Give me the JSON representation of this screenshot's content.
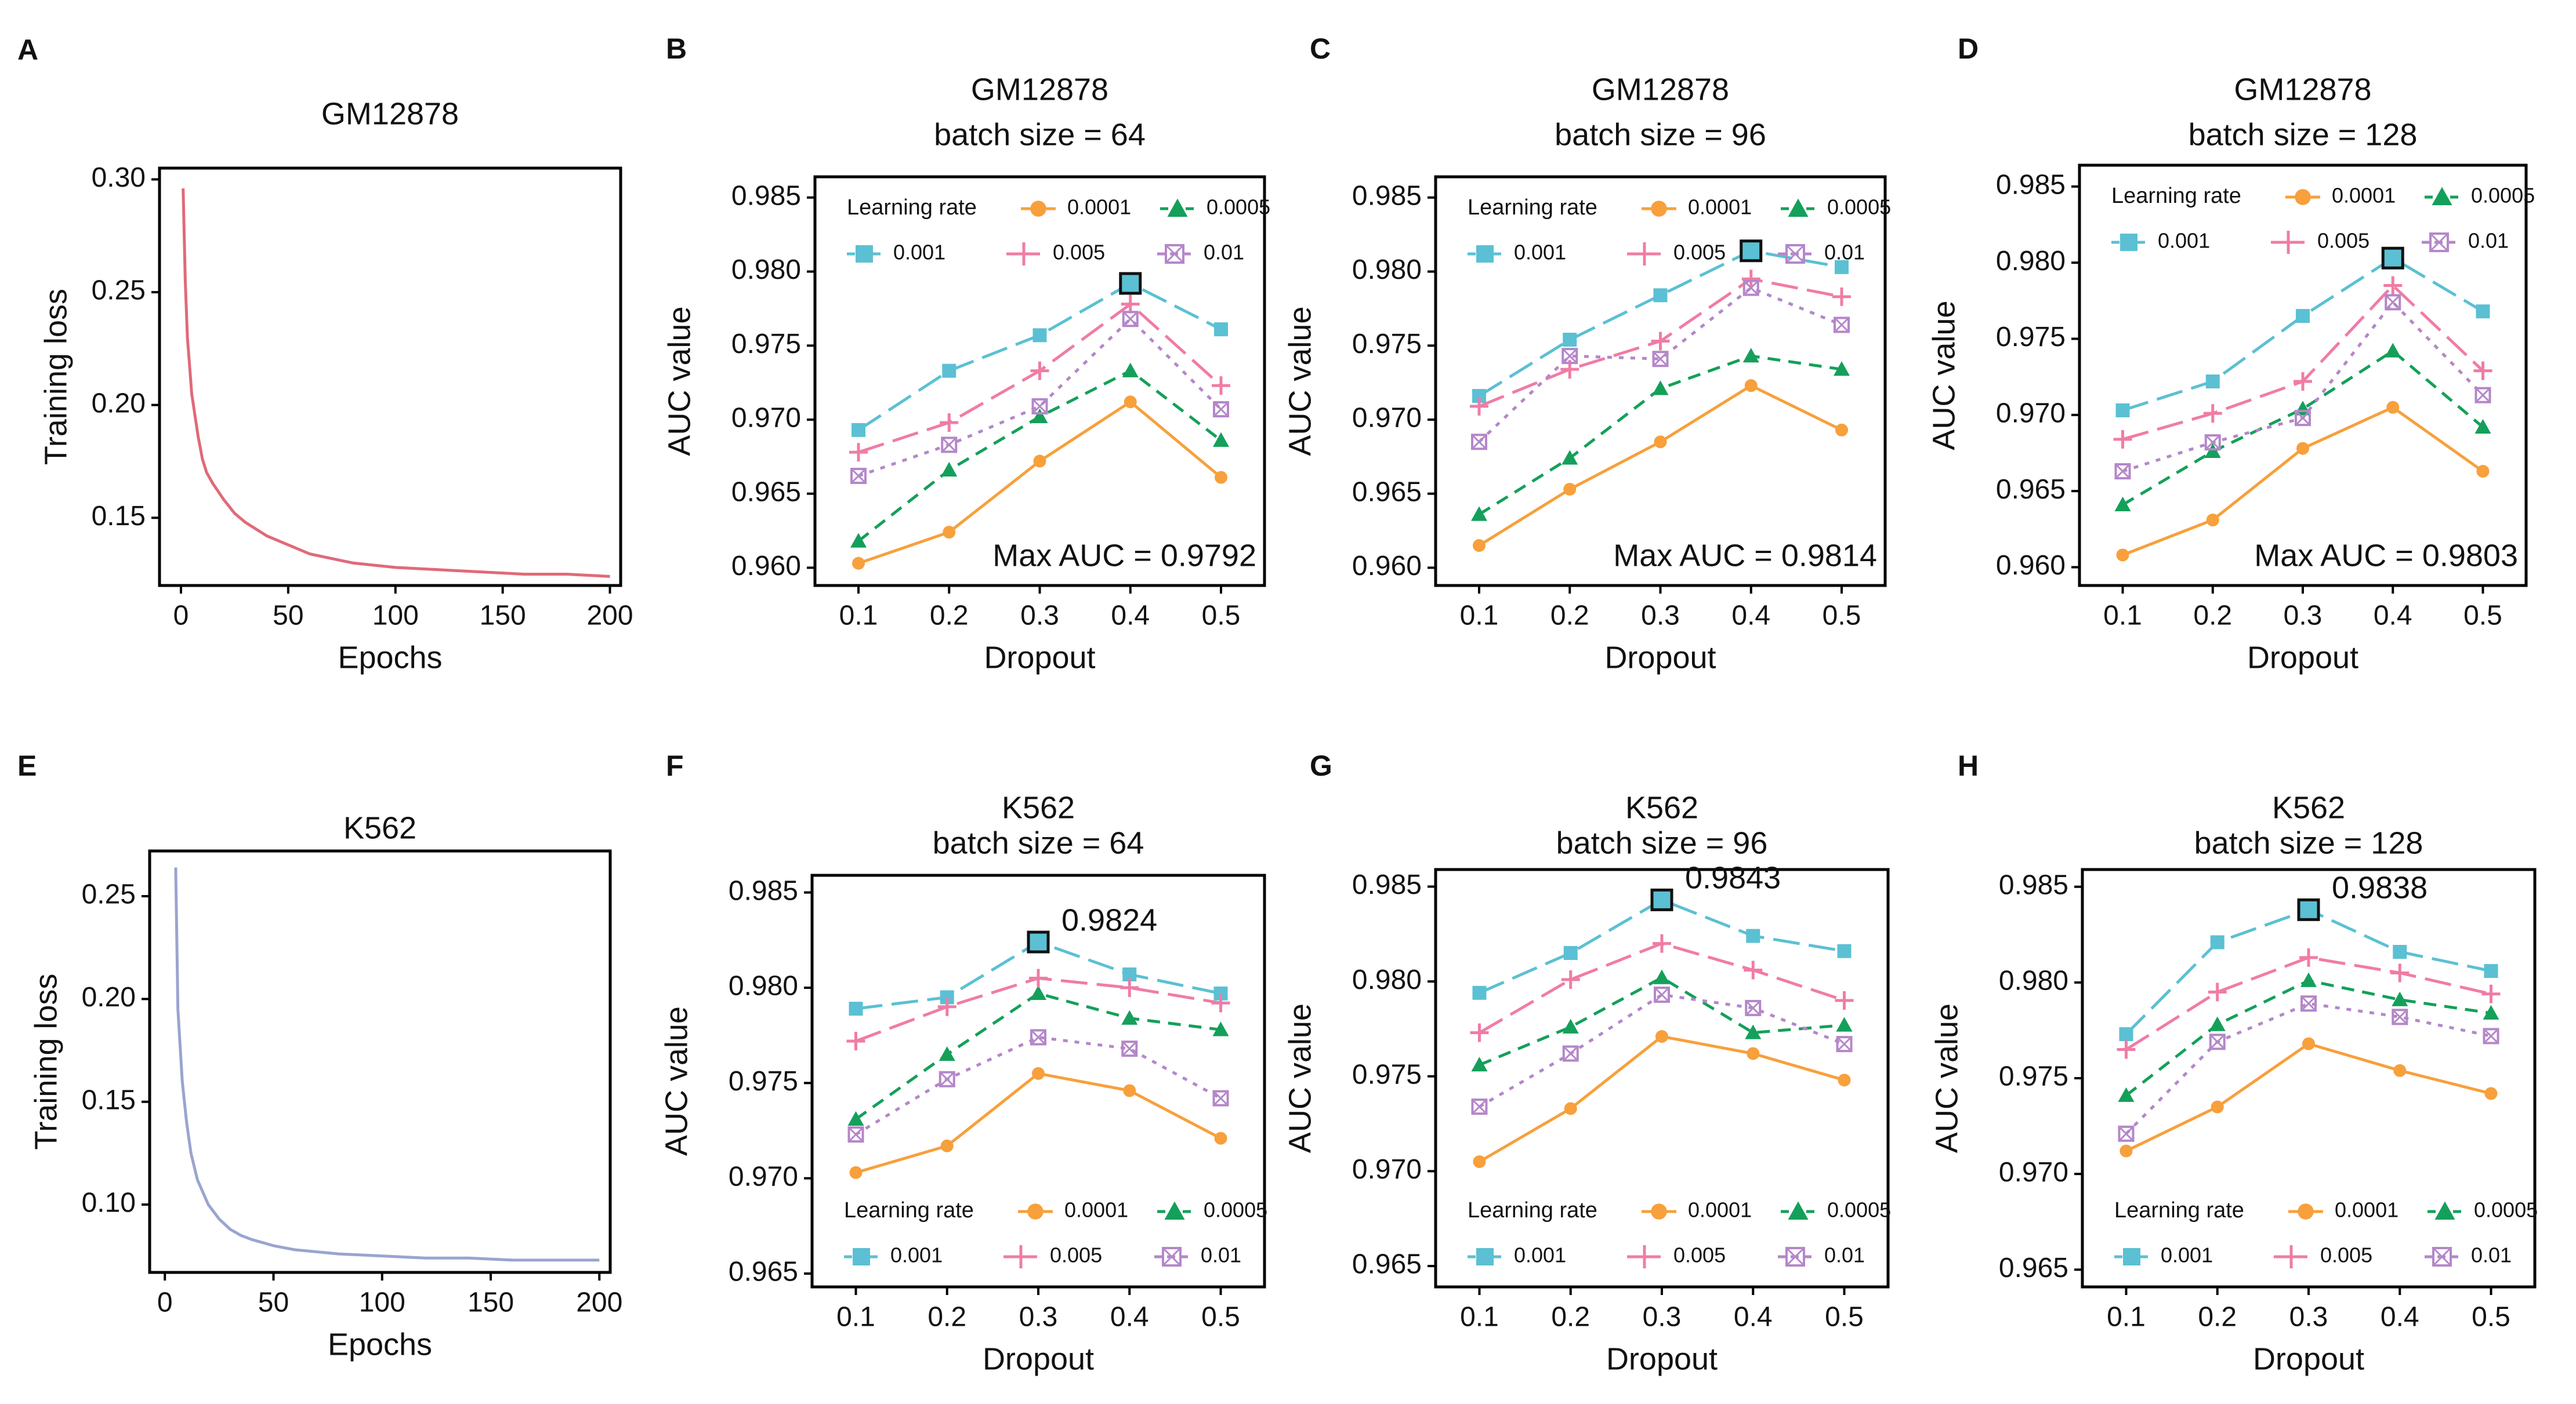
{
  "figure": "Training loss curves and AUC grid search",
  "colors": {
    "lr_0.0001": "#f7a03c",
    "lr_0.0005": "#14a05a",
    "lr_0.001": "#5bc0d3",
    "lr_0.005": "#f07ca6",
    "lr_0.01": "#b487c9",
    "loss_gm": "#e06a78",
    "loss_k562": "#9aa4cf",
    "max_marker": "#2d6a7f"
  },
  "legend": {
    "title": "Learning rate",
    "entries": [
      {
        "label": "0.0001",
        "key": "lr_0.0001",
        "marker": "circle",
        "dash": "solid"
      },
      {
        "label": "0.0005",
        "key": "lr_0.0005",
        "marker": "triangle",
        "dash": "dashed"
      },
      {
        "label": "0.001",
        "key": "lr_0.001",
        "marker": "square",
        "dash": "longdash"
      },
      {
        "label": "0.005",
        "key": "lr_0.005",
        "marker": "plus",
        "dash": "longdash"
      },
      {
        "label": "0.01",
        "key": "lr_0.01",
        "marker": "boxx",
        "dash": "dotted"
      }
    ]
  },
  "chart_data": [
    {
      "panel": "A",
      "type": "line",
      "title": "GM12878",
      "xlabel": "Epochs",
      "ylabel": "Training loss",
      "xlim": [
        -10,
        205
      ],
      "ylim": [
        0.12,
        0.305
      ],
      "xticks": [
        0,
        50,
        100,
        150,
        200
      ],
      "xticklabels": [
        "0",
        "50",
        "100",
        "150",
        "200"
      ],
      "yticks": [
        0.15,
        0.2,
        0.25,
        0.3
      ],
      "yticklabels": [
        "0.15",
        "0.20",
        "0.25",
        "0.30"
      ],
      "color_key": "loss_gm",
      "curve": {
        "x": [
          1,
          2,
          3,
          5,
          8,
          10,
          12,
          15,
          20,
          25,
          30,
          35,
          40,
          50,
          60,
          70,
          80,
          90,
          100,
          120,
          140,
          160,
          180,
          200
        ],
        "y": [
          0.296,
          0.255,
          0.23,
          0.205,
          0.186,
          0.176,
          0.17,
          0.165,
          0.158,
          0.152,
          0.148,
          0.145,
          0.142,
          0.138,
          0.134,
          0.132,
          0.13,
          0.129,
          0.128,
          0.127,
          0.126,
          0.125,
          0.125,
          0.124
        ]
      }
    },
    {
      "panel": "B",
      "type": "line",
      "title": "GM12878",
      "subtitle": "batch size = 64",
      "xlabel": "Dropout",
      "ylabel": "AUC  value",
      "x": [
        0.1,
        0.2,
        0.3,
        0.4,
        0.5
      ],
      "xticklabels": [
        "0.1",
        "0.2",
        "0.3",
        "0.4",
        "0.5"
      ],
      "ylim": [
        0.9588,
        0.9864
      ],
      "yticks": [
        0.96,
        0.965,
        0.97,
        0.975,
        0.98,
        0.985
      ],
      "yticklabels": [
        "0.960",
        "0.965",
        "0.970",
        "0.975",
        "0.980",
        "0.985"
      ],
      "legend_pos": "top",
      "annotation": "Max AUC = 0.9792",
      "annotation_pos": "bottom-right",
      "max_point": {
        "series": "0.001",
        "x": 0.4,
        "y": 0.9792
      },
      "series": [
        {
          "name": "0.0001",
          "values": [
            0.9603,
            0.9624,
            0.9672,
            0.9712,
            0.9661
          ]
        },
        {
          "name": "0.0005",
          "values": [
            0.9618,
            0.9666,
            0.9702,
            0.9733,
            0.9686
          ]
        },
        {
          "name": "0.001",
          "values": [
            0.9693,
            0.9733,
            0.9757,
            0.9792,
            0.9761
          ]
        },
        {
          "name": "0.005",
          "values": [
            0.9678,
            0.9698,
            0.9733,
            0.9778,
            0.9723
          ]
        },
        {
          "name": "0.01",
          "values": [
            0.9662,
            0.9683,
            0.9709,
            0.9768,
            0.9707
          ]
        }
      ]
    },
    {
      "panel": "C",
      "type": "line",
      "title": "GM12878",
      "subtitle": "batch size = 96",
      "xlabel": "Dropout",
      "ylabel": "AUC  value",
      "x": [
        0.1,
        0.2,
        0.3,
        0.4,
        0.5
      ],
      "xticklabels": [
        "0.1",
        "0.2",
        "0.3",
        "0.4",
        "0.5"
      ],
      "ylim": [
        0.9588,
        0.9864
      ],
      "yticks": [
        0.96,
        0.965,
        0.97,
        0.975,
        0.98,
        0.985
      ],
      "yticklabels": [
        "0.960",
        "0.965",
        "0.970",
        "0.975",
        "0.980",
        "0.985"
      ],
      "legend_pos": "top",
      "annotation": "Max AUC = 0.9814",
      "annotation_pos": "bottom-right",
      "max_point": {
        "series": "0.001",
        "x": 0.4,
        "y": 0.9814
      },
      "series": [
        {
          "name": "0.0001",
          "values": [
            0.9615,
            0.9653,
            0.9685,
            0.9723,
            0.9693
          ]
        },
        {
          "name": "0.0005",
          "values": [
            0.9636,
            0.9674,
            0.9721,
            0.9743,
            0.9734
          ]
        },
        {
          "name": "0.001",
          "values": [
            0.9716,
            0.9754,
            0.9784,
            0.9814,
            0.9803
          ]
        },
        {
          "name": "0.005",
          "values": [
            0.9709,
            0.9734,
            0.9753,
            0.9795,
            0.9783
          ]
        },
        {
          "name": "0.01",
          "values": [
            0.9685,
            0.9743,
            0.9741,
            0.9789,
            0.9764
          ]
        }
      ]
    },
    {
      "panel": "D",
      "type": "line",
      "title": "GM12878",
      "subtitle": "batch size = 128",
      "xlabel": "Dropout",
      "ylabel": "AUC  value",
      "x": [
        0.1,
        0.2,
        0.3,
        0.4,
        0.5
      ],
      "xticklabels": [
        "0.1",
        "0.2",
        "0.3",
        "0.4",
        "0.5"
      ],
      "ylim": [
        0.9588,
        0.9864
      ],
      "yticks": [
        0.96,
        0.965,
        0.97,
        0.975,
        0.98,
        0.985
      ],
      "yticklabels": [
        "0.960",
        "0.965",
        "0.970",
        "0.975",
        "0.980",
        "0.985"
      ],
      "legend_pos": "top",
      "annotation": "Max AUC = 0.9803",
      "annotation_pos": "bottom-right",
      "max_point": {
        "series": "0.001",
        "x": 0.4,
        "y": 0.9803
      },
      "series": [
        {
          "name": "0.0001",
          "values": [
            0.9608,
            0.9631,
            0.9678,
            0.9705,
            0.9663
          ]
        },
        {
          "name": "0.0005",
          "values": [
            0.9641,
            0.9676,
            0.9704,
            0.9742,
            0.9692
          ]
        },
        {
          "name": "0.001",
          "values": [
            0.9703,
            0.9722,
            0.9765,
            0.9803,
            0.9768
          ]
        },
        {
          "name": "0.005",
          "values": [
            0.9684,
            0.9701,
            0.9722,
            0.9785,
            0.9729
          ]
        },
        {
          "name": "0.01",
          "values": [
            0.9663,
            0.9682,
            0.9698,
            0.9774,
            0.9713
          ]
        }
      ]
    },
    {
      "panel": "E",
      "type": "line",
      "title": "K562",
      "xlabel": "Epochs",
      "ylabel": "Training loss",
      "xlim": [
        -7,
        205
      ],
      "ylim": [
        0.067,
        0.272
      ],
      "xticks": [
        0,
        50,
        100,
        150,
        200
      ],
      "xticklabels": [
        "0",
        "50",
        "100",
        "150",
        "200"
      ],
      "yticks": [
        0.1,
        0.15,
        0.2,
        0.25
      ],
      "yticklabels": [
        "0.10",
        "0.15",
        "0.20",
        "0.25"
      ],
      "color_key": "loss_k562",
      "curve": {
        "x": [
          5,
          6,
          8,
          10,
          12,
          15,
          20,
          25,
          30,
          35,
          40,
          50,
          60,
          70,
          80,
          100,
          120,
          140,
          160,
          180,
          200
        ],
        "y": [
          0.264,
          0.195,
          0.16,
          0.14,
          0.125,
          0.112,
          0.1,
          0.093,
          0.088,
          0.085,
          0.083,
          0.08,
          0.078,
          0.077,
          0.076,
          0.075,
          0.074,
          0.074,
          0.073,
          0.073,
          0.073
        ]
      }
    },
    {
      "panel": "F",
      "type": "line",
      "title": "K562",
      "subtitle": "batch size = 64",
      "xlabel": "Dropout",
      "ylabel": "AUC  value",
      "x": [
        0.1,
        0.2,
        0.3,
        0.4,
        0.5
      ],
      "xticklabels": [
        "0.1",
        "0.2",
        "0.3",
        "0.4",
        "0.5"
      ],
      "ylim": [
        0.9643,
        0.9859
      ],
      "yticks": [
        0.965,
        0.97,
        0.975,
        0.98,
        0.985
      ],
      "yticklabels": [
        "0.965",
        "0.970",
        "0.975",
        "0.980",
        "0.985"
      ],
      "legend_pos": "bottom",
      "annotation": "0.9824",
      "annotation_pos": "beside-max",
      "max_point": {
        "series": "0.001",
        "x": 0.3,
        "y": 0.9824
      },
      "series": [
        {
          "name": "0.0001",
          "values": [
            0.9703,
            0.9717,
            0.9755,
            0.9746,
            0.9721
          ]
        },
        {
          "name": "0.0005",
          "values": [
            0.9731,
            0.9765,
            0.9797,
            0.9784,
            0.9778
          ]
        },
        {
          "name": "0.001",
          "values": [
            0.9789,
            0.9795,
            0.9824,
            0.9807,
            0.9797
          ]
        },
        {
          "name": "0.005",
          "values": [
            0.9772,
            0.979,
            0.9805,
            0.98,
            0.9792
          ]
        },
        {
          "name": "0.01",
          "values": [
            0.9723,
            0.9752,
            0.9774,
            0.9768,
            0.9742
          ]
        }
      ]
    },
    {
      "panel": "G",
      "type": "line",
      "title": "K562",
      "subtitle": "batch size = 96",
      "xlabel": "Dropout",
      "ylabel": "AUC  value",
      "x": [
        0.1,
        0.2,
        0.3,
        0.4,
        0.5
      ],
      "xticklabels": [
        "0.1",
        "0.2",
        "0.3",
        "0.4",
        "0.5"
      ],
      "ylim": [
        0.9639,
        0.9859
      ],
      "yticks": [
        0.965,
        0.97,
        0.975,
        0.98,
        0.985
      ],
      "yticklabels": [
        "0.965",
        "0.970",
        "0.975",
        "0.980",
        "0.985"
      ],
      "legend_pos": "bottom",
      "annotation": "0.9843",
      "annotation_pos": "beside-max",
      "max_point": {
        "series": "0.001",
        "x": 0.3,
        "y": 0.9843
      },
      "series": [
        {
          "name": "0.0001",
          "values": [
            0.9705,
            0.9733,
            0.9771,
            0.9762,
            0.9748
          ]
        },
        {
          "name": "0.0005",
          "values": [
            0.9756,
            0.9776,
            0.9802,
            0.9773,
            0.9777
          ]
        },
        {
          "name": "0.001",
          "values": [
            0.9794,
            0.9815,
            0.9843,
            0.9824,
            0.9816
          ]
        },
        {
          "name": "0.005",
          "values": [
            0.9773,
            0.9801,
            0.982,
            0.9806,
            0.979
          ]
        },
        {
          "name": "0.01",
          "values": [
            0.9734,
            0.9762,
            0.9793,
            0.9786,
            0.9767
          ]
        }
      ]
    },
    {
      "panel": "H",
      "type": "line",
      "title": "K562",
      "subtitle": "batch size = 128",
      "xlabel": "Dropout",
      "ylabel": "AUC  value",
      "x": [
        0.1,
        0.2,
        0.3,
        0.4,
        0.5
      ],
      "xticklabels": [
        "0.1",
        "0.2",
        "0.3",
        "0.4",
        "0.5"
      ],
      "ylim": [
        0.9641,
        0.9859
      ],
      "yticks": [
        0.965,
        0.97,
        0.975,
        0.98,
        0.985
      ],
      "yticklabels": [
        "0.965",
        "0.970",
        "0.975",
        "0.980",
        "0.985"
      ],
      "legend_pos": "bottom",
      "annotation": "0.9838",
      "annotation_pos": "beside-max",
      "max_point": {
        "series": "0.001",
        "x": 0.3,
        "y": 0.9838
      },
      "series": [
        {
          "name": "0.0001",
          "values": [
            0.9712,
            0.9735,
            0.9768,
            0.9754,
            0.9742
          ]
        },
        {
          "name": "0.0005",
          "values": [
            0.9741,
            0.9778,
            0.9801,
            0.9791,
            0.9784
          ]
        },
        {
          "name": "0.001",
          "values": [
            0.9773,
            0.9821,
            0.9838,
            0.9816,
            0.9806
          ]
        },
        {
          "name": "0.005",
          "values": [
            0.9765,
            0.9795,
            0.9813,
            0.9805,
            0.9794
          ]
        },
        {
          "name": "0.01",
          "values": [
            0.9721,
            0.9769,
            0.9789,
            0.9782,
            0.9772
          ]
        }
      ]
    }
  ]
}
